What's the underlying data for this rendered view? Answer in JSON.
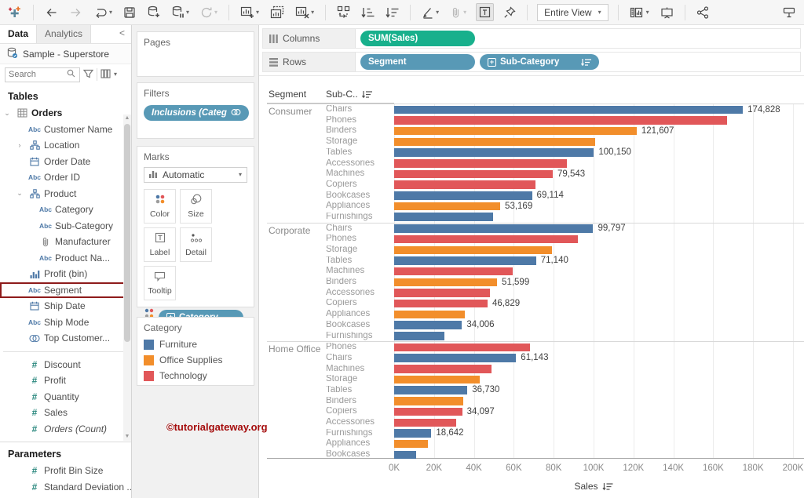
{
  "toolbar": {
    "view_mode_label": "Entire View",
    "icons": [
      "tableau-logo",
      "back",
      "forward",
      "replay",
      "save",
      "new-data-source",
      "pause-auto-updates",
      "run-update",
      "new-worksheet",
      "duplicate-sheet",
      "clear-sheet",
      "swap-rows-columns",
      "sort-ascending",
      "sort-descending",
      "highlight",
      "annotation",
      "text-label",
      "fix-axes-pin",
      "fit-selector",
      "show-mark-labels",
      "presentation-mode",
      "share",
      "show-hide-cards"
    ]
  },
  "sidebar": {
    "tabs": [
      {
        "label": "Data",
        "active": true
      },
      {
        "label": "Analytics",
        "active": false
      }
    ],
    "collapse_icon": "<",
    "datasource": "Sample - Superstore",
    "search": {
      "placeholder": "Search"
    },
    "tables_header": "Tables",
    "fields": [
      {
        "name": "Orders",
        "icon": "table",
        "bold": true,
        "expand": "v",
        "indent": 0
      },
      {
        "name": "Customer Name",
        "icon": "abc",
        "indent": 1
      },
      {
        "name": "Location",
        "icon": "hier",
        "expand": ">",
        "indent": 1
      },
      {
        "name": "Order Date",
        "icon": "cal",
        "indent": 1
      },
      {
        "name": "Order ID",
        "icon": "abc",
        "indent": 1
      },
      {
        "name": "Product",
        "icon": "hier",
        "expand": "v",
        "indent": 1
      },
      {
        "name": "Category",
        "icon": "abc",
        "indent": 2
      },
      {
        "name": "Sub-Category",
        "icon": "abc",
        "indent": 2
      },
      {
        "name": "Manufacturer",
        "icon": "clip",
        "indent": 2
      },
      {
        "name": "Product Na...",
        "icon": "abc",
        "indent": 2
      },
      {
        "name": "Profit (bin)",
        "icon": "bin",
        "indent": 1
      },
      {
        "name": "Segment",
        "icon": "abc",
        "indent": 1,
        "highlighted": true
      },
      {
        "name": "Ship Date",
        "icon": "cal",
        "indent": 1
      },
      {
        "name": "Ship Mode",
        "icon": "abc",
        "indent": 1
      },
      {
        "name": "Top Customer...",
        "icon": "set",
        "indent": 1
      },
      {
        "divider": true
      },
      {
        "name": "Discount",
        "icon": "num",
        "indent": 1
      },
      {
        "name": "Profit",
        "icon": "num",
        "indent": 1
      },
      {
        "name": "Quantity",
        "icon": "num",
        "indent": 1
      },
      {
        "name": "Sales",
        "icon": "num",
        "indent": 1
      },
      {
        "name": "Orders (Count)",
        "icon": "num",
        "indent": 1,
        "italic": true
      }
    ],
    "parameters_header": "Parameters",
    "parameters": [
      "Profit Bin Size",
      "Standard Deviation ..."
    ]
  },
  "panel": {
    "pages_label": "Pages",
    "filters_label": "Filters",
    "filter_pill": "Inclusions (Categ..",
    "marks": {
      "title": "Marks",
      "mark_type": "Automatic",
      "buttons": [
        {
          "label": "Color",
          "icon": "color"
        },
        {
          "label": "Size",
          "icon": "size"
        },
        {
          "label": "Label",
          "icon": "label"
        },
        {
          "label": "Detail",
          "icon": "detail"
        },
        {
          "label": "Tooltip",
          "icon": "tooltip"
        }
      ],
      "pill": "Category"
    },
    "legend": {
      "title": "Category",
      "items": [
        {
          "label": "Furniture",
          "color": "#4e79a7"
        },
        {
          "label": "Office Supplies",
          "color": "#f28e2b"
        },
        {
          "label": "Technology",
          "color": "#e15759"
        }
      ]
    }
  },
  "shelves": {
    "columns_label": "Columns",
    "columns_pills": [
      {
        "text": "SUM(Sales)",
        "type": "measure"
      }
    ],
    "rows_label": "Rows",
    "rows_pills": [
      {
        "text": "Segment",
        "type": "dimension"
      },
      {
        "text": "Sub-Category",
        "type": "dimension",
        "plus": true,
        "sort": true
      }
    ]
  },
  "watermark": "©tutorialgateway.org",
  "colors": {
    "measure_pill": "#18b08c",
    "dimension_pill": "#5899b6",
    "highlight_box": "#8e1b1b",
    "watermark": "#a50d0d"
  },
  "chart_data": {
    "type": "bar",
    "orientation": "horizontal",
    "title": "",
    "xlabel": "Sales",
    "xlim": [
      0,
      200000
    ],
    "x_ticks": [
      "0K",
      "20K",
      "40K",
      "60K",
      "80K",
      "100K",
      "120K",
      "140K",
      "160K",
      "180K",
      "200K"
    ],
    "col_headers": [
      "Segment",
      "Sub-C.."
    ],
    "legend_title": "Category",
    "grid": true,
    "sorted": "descending",
    "groups": [
      {
        "segment": "Consumer",
        "rows": [
          {
            "sub_category": "Chairs",
            "category": "Furniture",
            "value": 174828,
            "label": "174,828"
          },
          {
            "sub_category": "Phones",
            "category": "Technology",
            "value": 167000,
            "label": ""
          },
          {
            "sub_category": "Binders",
            "category": "Office Supplies",
            "value": 121607,
            "label": "121,607"
          },
          {
            "sub_category": "Storage",
            "category": "Office Supplies",
            "value": 100800,
            "label": ""
          },
          {
            "sub_category": "Tables",
            "category": "Furniture",
            "value": 100150,
            "label": "100,150"
          },
          {
            "sub_category": "Accessories",
            "category": "Technology",
            "value": 86500,
            "label": ""
          },
          {
            "sub_category": "Machines",
            "category": "Technology",
            "value": 79543,
            "label": "79,543"
          },
          {
            "sub_category": "Copiers",
            "category": "Technology",
            "value": 70800,
            "label": ""
          },
          {
            "sub_category": "Bookcases",
            "category": "Furniture",
            "value": 69114,
            "label": "69,114"
          },
          {
            "sub_category": "Appliances",
            "category": "Office Supplies",
            "value": 53169,
            "label": "53,169"
          },
          {
            "sub_category": "Furnishings",
            "category": "Furniture",
            "value": 49500,
            "label": ""
          }
        ]
      },
      {
        "segment": "Corporate",
        "rows": [
          {
            "sub_category": "Chairs",
            "category": "Furniture",
            "value": 99797,
            "label": "99,797"
          },
          {
            "sub_category": "Phones",
            "category": "Technology",
            "value": 92000,
            "label": ""
          },
          {
            "sub_category": "Storage",
            "category": "Office Supplies",
            "value": 79000,
            "label": ""
          },
          {
            "sub_category": "Tables",
            "category": "Furniture",
            "value": 71140,
            "label": "71,140"
          },
          {
            "sub_category": "Machines",
            "category": "Technology",
            "value": 59300,
            "label": ""
          },
          {
            "sub_category": "Binders",
            "category": "Office Supplies",
            "value": 51599,
            "label": "51,599"
          },
          {
            "sub_category": "Accessories",
            "category": "Technology",
            "value": 48200,
            "label": ""
          },
          {
            "sub_category": "Copiers",
            "category": "Technology",
            "value": 46829,
            "label": "46,829"
          },
          {
            "sub_category": "Appliances",
            "category": "Office Supplies",
            "value": 35300,
            "label": ""
          },
          {
            "sub_category": "Bookcases",
            "category": "Furniture",
            "value": 34006,
            "label": "34,006"
          },
          {
            "sub_category": "Furnishings",
            "category": "Furniture",
            "value": 25000,
            "label": ""
          }
        ]
      },
      {
        "segment": "Home Office",
        "rows": [
          {
            "sub_category": "Phones",
            "category": "Technology",
            "value": 68000,
            "label": ""
          },
          {
            "sub_category": "Chairs",
            "category": "Furniture",
            "value": 61143,
            "label": "61,143"
          },
          {
            "sub_category": "Machines",
            "category": "Technology",
            "value": 49000,
            "label": ""
          },
          {
            "sub_category": "Storage",
            "category": "Office Supplies",
            "value": 43000,
            "label": ""
          },
          {
            "sub_category": "Tables",
            "category": "Furniture",
            "value": 36730,
            "label": "36,730"
          },
          {
            "sub_category": "Binders",
            "category": "Office Supplies",
            "value": 34500,
            "label": ""
          },
          {
            "sub_category": "Copiers",
            "category": "Technology",
            "value": 34097,
            "label": "34,097"
          },
          {
            "sub_category": "Accessories",
            "category": "Technology",
            "value": 31000,
            "label": ""
          },
          {
            "sub_category": "Furnishings",
            "category": "Furniture",
            "value": 18642,
            "label": "18,642"
          },
          {
            "sub_category": "Appliances",
            "category": "Office Supplies",
            "value": 17000,
            "label": ""
          },
          {
            "sub_category": "Bookcases",
            "category": "Furniture",
            "value": 11000,
            "label": ""
          }
        ]
      }
    ]
  }
}
